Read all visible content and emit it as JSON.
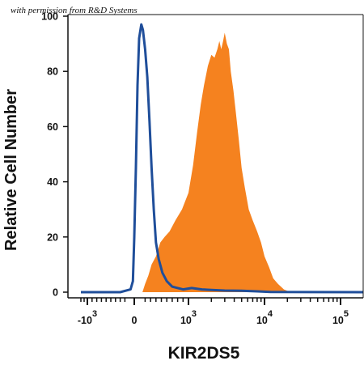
{
  "watermark": "with permission from R&D Systems",
  "chart_data": {
    "type": "area",
    "xlabel": "KIR2DS5",
    "ylabel": "Relative Cell Number",
    "x_scale": "biexponential",
    "xlim": [
      -3000,
      200000
    ],
    "ylim": [
      0,
      100
    ],
    "y_ticks": [
      0,
      20,
      40,
      60,
      80,
      100
    ],
    "x_tick_labels": [
      {
        "value": -1000,
        "base": "-10",
        "exp": "3"
      },
      {
        "value": 0,
        "base": "0",
        "exp": ""
      },
      {
        "value": 1000,
        "base": "10",
        "exp": "3"
      },
      {
        "value": 10000,
        "base": "10",
        "exp": "4"
      },
      {
        "value": 100000,
        "base": "10",
        "exp": "5"
      }
    ],
    "grid": false,
    "series": [
      {
        "style": "filled",
        "color": "#f5821f",
        "x": [
          150,
          200,
          260,
          320,
          400,
          480,
          560,
          650,
          760,
          880,
          1000,
          1150,
          1300,
          1450,
          1600,
          1800,
          2000,
          2200,
          2400,
          2550,
          2700,
          2850,
          3000,
          3200,
          3400,
          3600,
          3900,
          4200,
          4600,
          5000,
          5500,
          6200,
          7000,
          8000,
          9000,
          10000,
          11500,
          13000,
          15000,
          18000,
          22000
        ],
        "y": [
          0,
          3,
          6,
          10,
          13,
          18,
          20,
          22,
          26,
          30,
          36,
          46,
          58,
          68,
          75,
          82,
          86,
          85,
          88,
          91,
          88,
          91,
          94,
          90,
          88,
          80,
          73,
          65,
          55,
          45,
          38,
          30,
          26,
          22,
          18,
          13,
          9,
          5,
          3,
          1,
          0
        ]
      },
      {
        "style": "line",
        "color": "#1f4e9a",
        "x": [
          -3000,
          -300,
          -80,
          -30,
          0,
          30,
          60,
          90,
          130,
          160,
          200,
          240,
          280,
          320,
          360,
          400,
          450,
          520,
          600,
          700,
          900,
          1100,
          1500,
          2000,
          3000,
          5000,
          8000,
          12000,
          200000
        ],
        "y": [
          0,
          0,
          1,
          4,
          20,
          45,
          75,
          92,
          97,
          95,
          88,
          78,
          62,
          45,
          30,
          18,
          12,
          7,
          4,
          2,
          1,
          1.5,
          1,
          0.8,
          0.6,
          0.5,
          0.3,
          0.1,
          0
        ]
      }
    ]
  }
}
